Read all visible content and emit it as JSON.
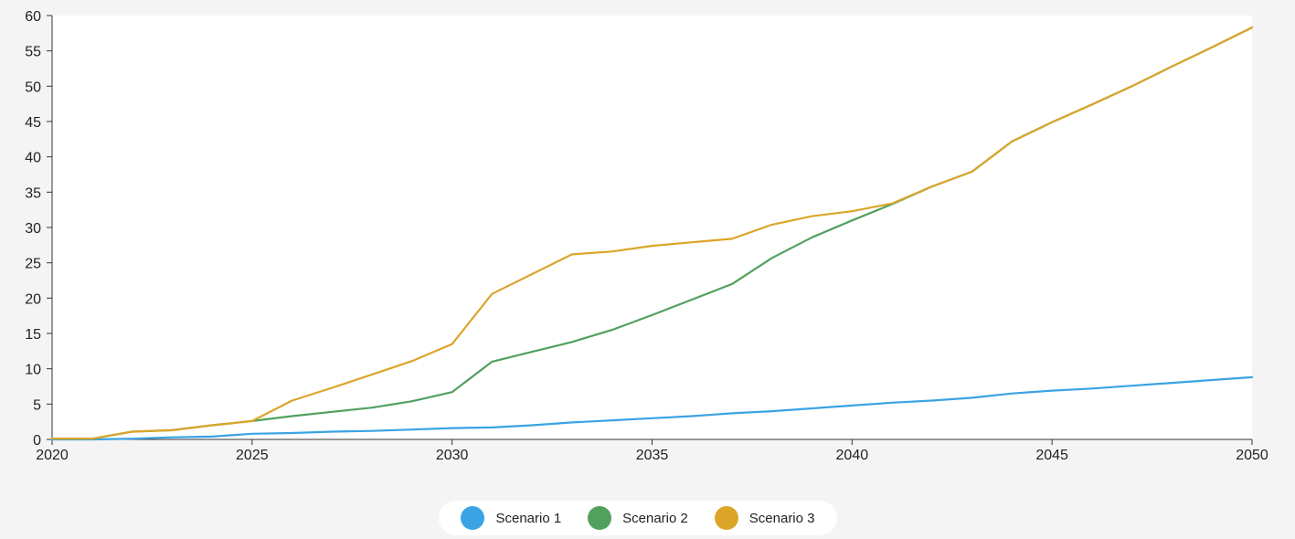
{
  "chart_data": {
    "type": "line",
    "title": "",
    "xlabel": "",
    "ylabel": "",
    "xlim": [
      2020,
      2050
    ],
    "ylim": [
      0,
      60
    ],
    "xticks": [
      2020,
      2025,
      2030,
      2035,
      2040,
      2045,
      2050
    ],
    "yticks": [
      0,
      5,
      10,
      15,
      20,
      25,
      30,
      35,
      40,
      45,
      50,
      55,
      60
    ],
    "grid": false,
    "legend_position": "bottom-center",
    "x": [
      2020,
      2021,
      2022,
      2023,
      2024,
      2025,
      2026,
      2027,
      2028,
      2029,
      2030,
      2031,
      2032,
      2033,
      2034,
      2035,
      2036,
      2037,
      2038,
      2039,
      2040,
      2041,
      2042,
      2043,
      2044,
      2045,
      2046,
      2047,
      2048,
      2049,
      2050
    ],
    "series": [
      {
        "name": "Scenario 1",
        "color": "#3aa3e3",
        "values": [
          0,
          0,
          0.1,
          0.3,
          0.4,
          0.8,
          0.9,
          1.1,
          1.2,
          1.4,
          1.6,
          1.7,
          2.0,
          2.4,
          2.7,
          3.0,
          3.3,
          3.7,
          4.0,
          4.4,
          4.8,
          5.2,
          5.5,
          5.9,
          6.5,
          6.9,
          7.2,
          7.6,
          8.0,
          8.4,
          8.8
        ]
      },
      {
        "name": "Scenario 2",
        "color": "#52a05e",
        "values": [
          0.1,
          0.1,
          1.1,
          1.3,
          2.0,
          2.6,
          3.3,
          3.9,
          4.5,
          5.4,
          6.7,
          11.0,
          12.4,
          13.8,
          15.5,
          17.6,
          19.8,
          22.0,
          25.7,
          28.6,
          31.0,
          33.3,
          35.8,
          37.9,
          42.2,
          44.9,
          47.4,
          50.0,
          52.8,
          55.5,
          58.3
        ]
      },
      {
        "name": "Scenario 3",
        "color": "#dba52a",
        "values": [
          0.1,
          0.1,
          1.1,
          1.3,
          2.0,
          2.6,
          5.5,
          7.3,
          9.2,
          11.1,
          13.5,
          20.6,
          23.4,
          26.2,
          26.6,
          27.4,
          27.9,
          28.4,
          30.4,
          31.6,
          32.3,
          33.4,
          35.8,
          37.9,
          42.2,
          44.9,
          47.4,
          50.0,
          52.8,
          55.5,
          58.3
        ]
      }
    ]
  }
}
